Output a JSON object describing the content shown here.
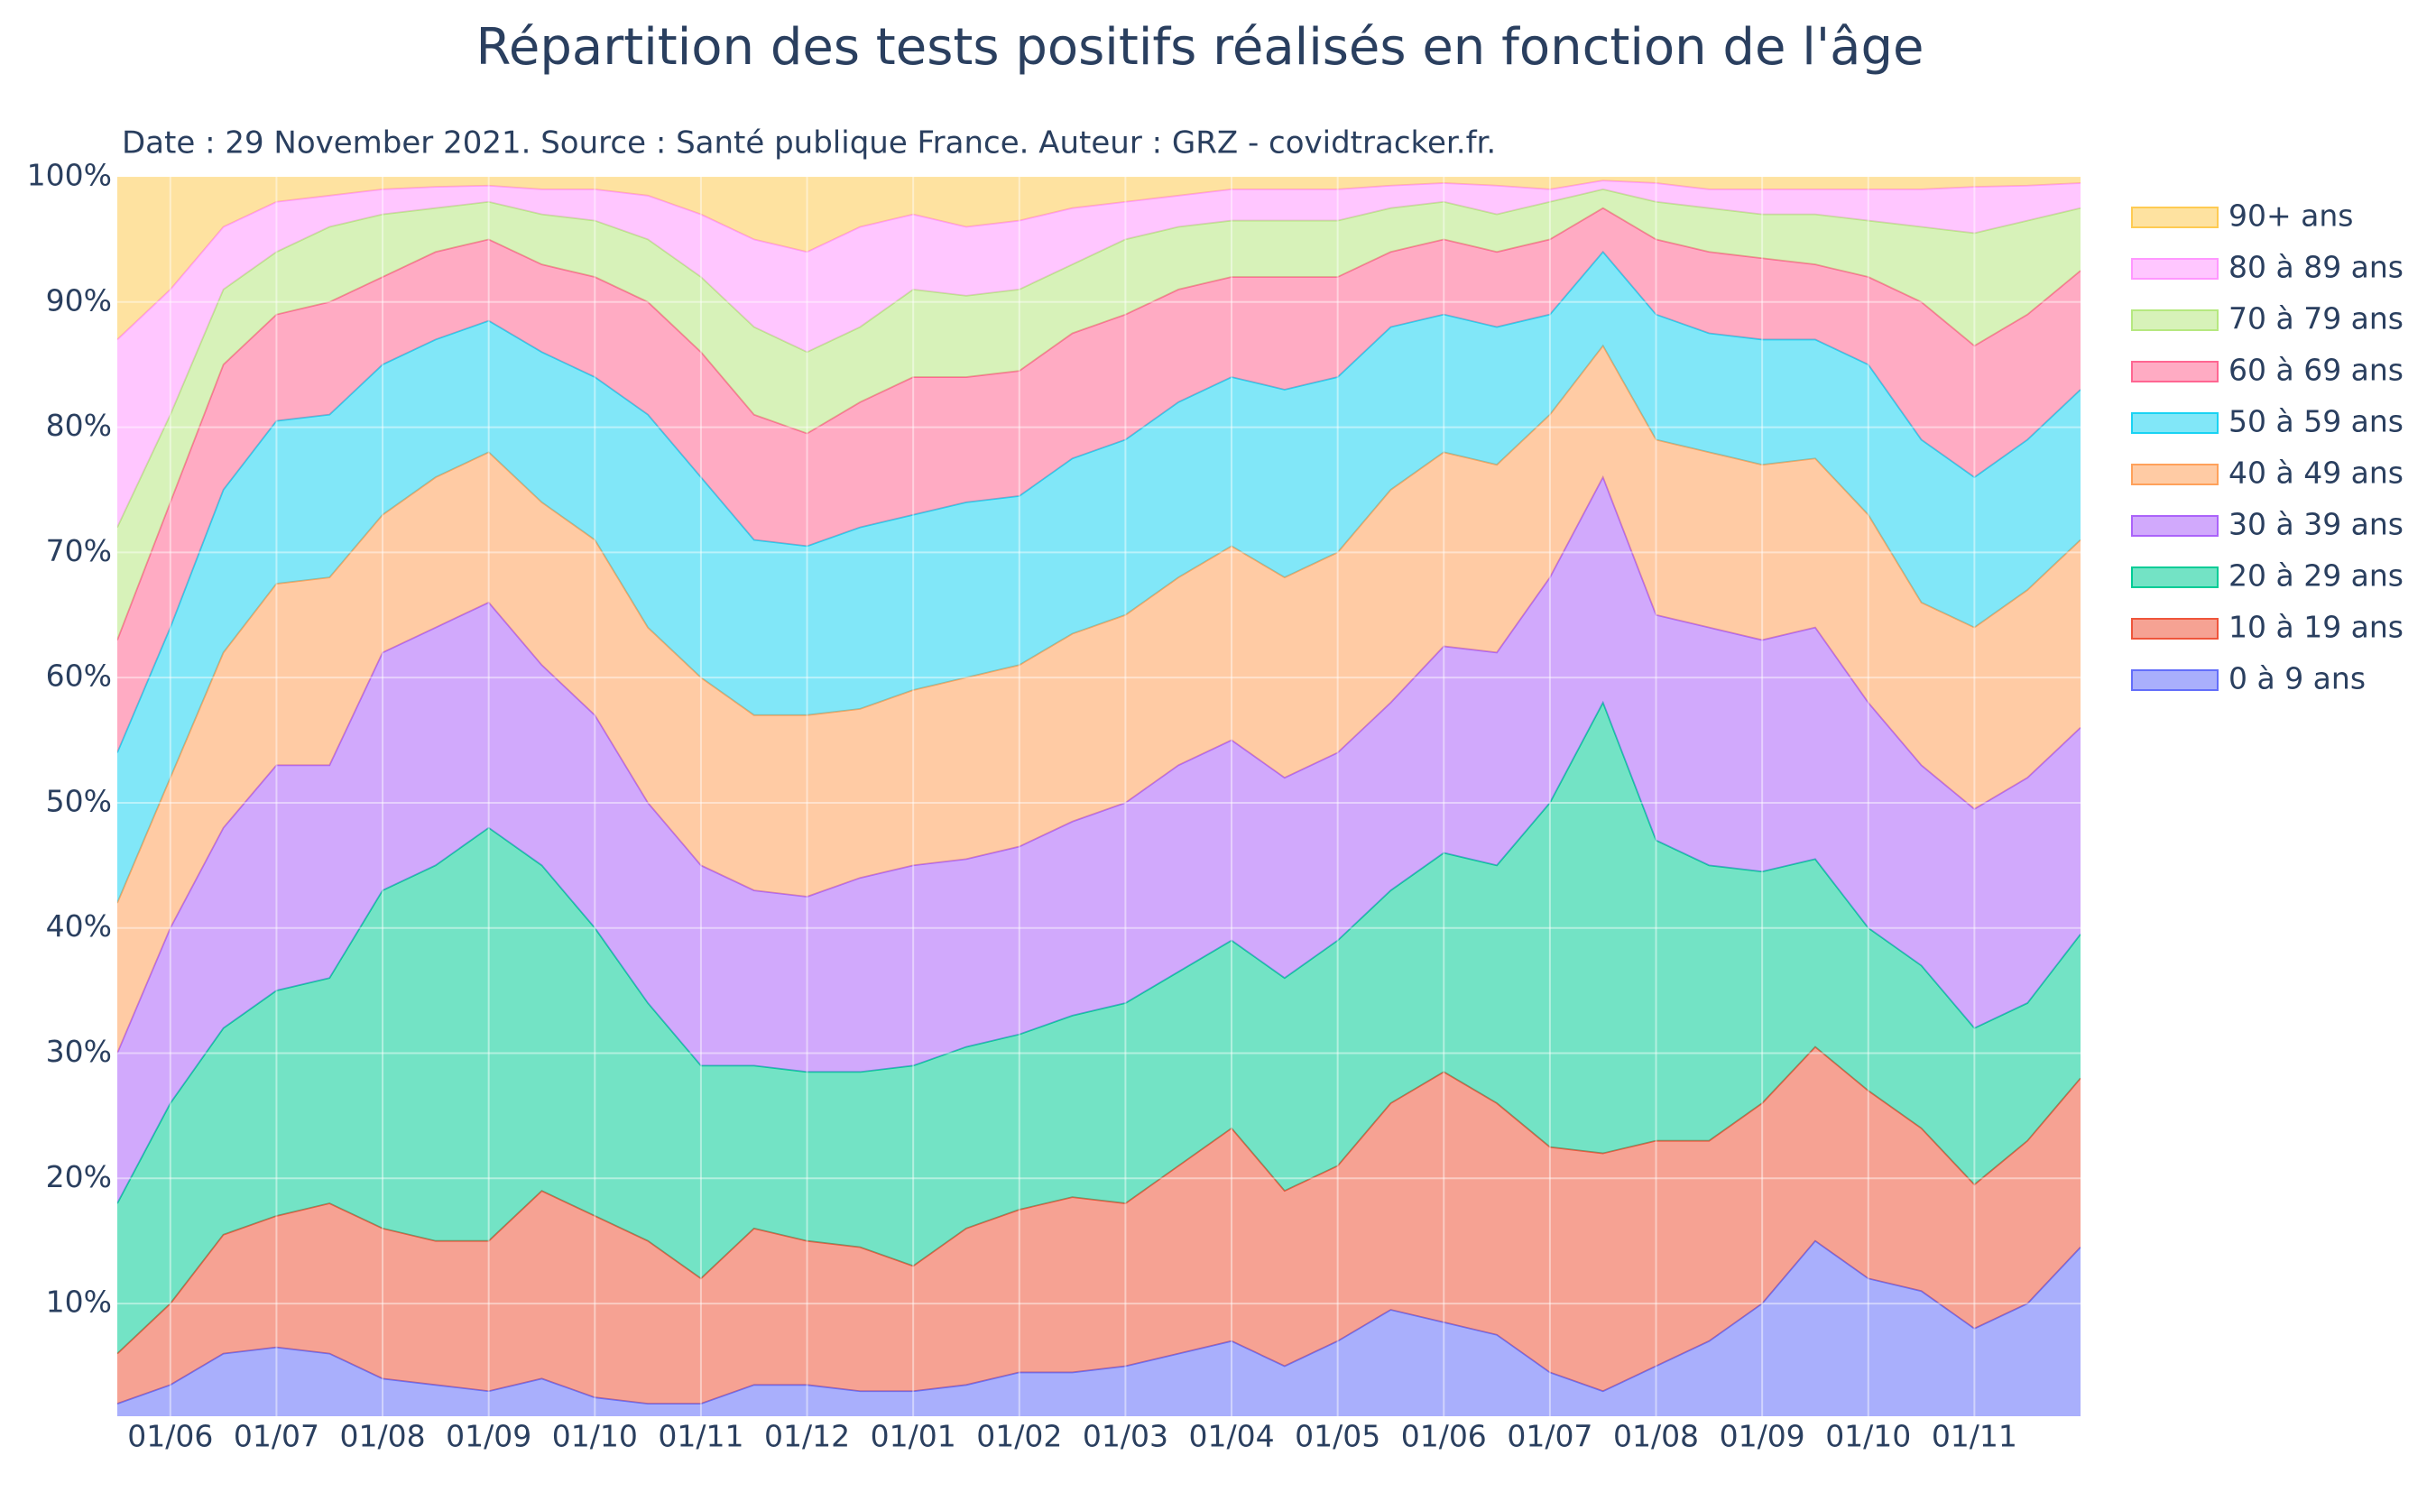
{
  "chart_data": {
    "type": "stacked_area",
    "title": "Répartition des tests positifs réalisés en fonction de l'âge",
    "subtitle": "Date : 29 November 2021. Source : Santé publique France. Auteur : GRZ - covidtracker.fr.",
    "categories": [
      null,
      "01/06",
      null,
      "01/07",
      null,
      "01/08",
      null,
      "01/09",
      null,
      "01/10",
      null,
      "01/11",
      null,
      "01/12",
      null,
      "01/01",
      null,
      "01/02",
      null,
      "01/03",
      null,
      "01/04",
      null,
      "01/05",
      null,
      "01/06",
      null,
      "01/07",
      null,
      "01/08",
      null,
      "01/09",
      null,
      "01/10",
      null,
      "01/11",
      null,
      null
    ],
    "ylim": [
      1,
      100
    ],
    "yticks": [
      {
        "value": 10,
        "label": "10%"
      },
      {
        "value": 20,
        "label": "20%"
      },
      {
        "value": 30,
        "label": "30%"
      },
      {
        "value": 40,
        "label": "40%"
      },
      {
        "value": 50,
        "label": "50%"
      },
      {
        "value": 60,
        "label": "60%"
      },
      {
        "value": 70,
        "label": "70%"
      },
      {
        "value": 80,
        "label": "80%"
      },
      {
        "value": 90,
        "label": "90%"
      },
      {
        "value": 100,
        "label": "100%"
      }
    ],
    "grid": true,
    "legend": "right",
    "series": [
      {
        "name": "0 à 9 ans",
        "color": "#636efa",
        "values": [
          2,
          3.5,
          6,
          6.5,
          6,
          4,
          3.5,
          3,
          4,
          2.5,
          2,
          2,
          3.5,
          3.5,
          3,
          3,
          3.5,
          4.5,
          4.5,
          5,
          6,
          7,
          5,
          7,
          9.5,
          8.5,
          7.5,
          4.5,
          3,
          5,
          7,
          10,
          15,
          12,
          11,
          8,
          10,
          14.5
        ]
      },
      {
        "name": "10 à 19 ans",
        "color": "#ef553b",
        "values": [
          4,
          6.5,
          9.5,
          10.5,
          12,
          12,
          11.5,
          12,
          15,
          14.5,
          13,
          10,
          12.5,
          11.5,
          11.5,
          10,
          12.5,
          13,
          14,
          13,
          15,
          17,
          14,
          14,
          16.5,
          20,
          18.5,
          18,
          19,
          18,
          16,
          16,
          15.5,
          15,
          13,
          11.5,
          13,
          13.5
        ]
      },
      {
        "name": "20 à 29 ans",
        "color": "#00cc96",
        "values": [
          12,
          16,
          16.5,
          18,
          18,
          27,
          30,
          33,
          26,
          23,
          19,
          17,
          13,
          13.5,
          14,
          16,
          14.5,
          14,
          14.5,
          16,
          15.5,
          15,
          17,
          18,
          17,
          17.5,
          19,
          27.5,
          36,
          24,
          22,
          18.5,
          15,
          13,
          13,
          12.5,
          11,
          11.5
        ]
      },
      {
        "name": "30 à 39 ans",
        "color": "#ab63fa",
        "values": [
          12,
          14,
          16,
          18,
          17,
          19,
          19,
          18,
          16,
          17,
          16,
          16,
          14,
          14,
          15.5,
          16,
          15,
          15,
          15.5,
          16,
          16.5,
          16,
          16,
          15,
          15,
          16.5,
          17,
          18,
          18,
          18,
          19,
          18.5,
          18.5,
          18,
          16,
          17.5,
          18,
          16.5
        ]
      },
      {
        "name": "40 à 49 ans",
        "color": "#ffa15a",
        "values": [
          12,
          12,
          14,
          14.5,
          15,
          11,
          12,
          12,
          13,
          14,
          14,
          15,
          14,
          14.5,
          13.5,
          14,
          14.5,
          14.5,
          15,
          15,
          15,
          15.5,
          16,
          16,
          17,
          15.5,
          15,
          13,
          10.5,
          14,
          14,
          14,
          13.5,
          15,
          13,
          14.5,
          15,
          15
        ]
      },
      {
        "name": "50 à 59 ans",
        "color": "#19d3f3",
        "values": [
          12,
          12,
          13,
          13,
          13,
          12,
          11,
          10.5,
          12,
          13,
          17,
          16,
          14,
          13.5,
          14.5,
          14,
          14,
          13.5,
          14,
          14,
          14,
          13.5,
          15,
          14,
          13,
          11,
          11,
          8,
          7.5,
          10,
          9.5,
          10,
          9.5,
          12,
          13,
          12,
          12,
          12
        ]
      },
      {
        "name": "60 à 69 ans",
        "color": "#ff6692",
        "values": [
          9,
          10,
          10,
          8.5,
          9,
          7,
          7,
          6.5,
          7,
          8,
          9,
          10,
          10,
          9,
          10,
          11,
          10,
          10,
          10,
          10,
          9,
          8,
          9,
          8,
          6,
          6,
          6,
          6,
          3.5,
          6,
          6.5,
          6.5,
          6,
          7,
          11,
          10.5,
          10,
          9.5
        ]
      },
      {
        "name": "70 à 79 ans",
        "color": "#b6e880",
        "values": [
          9,
          7,
          6,
          5,
          6,
          5,
          3.5,
          3,
          4,
          4.5,
          5,
          6,
          7,
          6.5,
          6,
          7,
          6.5,
          6.5,
          5.5,
          6,
          5,
          4.5,
          4.5,
          4.5,
          3.5,
          3,
          3,
          3,
          1.5,
          3,
          3.5,
          3.5,
          4,
          4.5,
          6,
          9,
          7.5,
          5
        ]
      },
      {
        "name": "80 à 89 ans",
        "color": "#ff97ff",
        "values": [
          15,
          10,
          5,
          4,
          2.5,
          2,
          1.7,
          1.3,
          2,
          2.5,
          3.5,
          5,
          7,
          8,
          8,
          6,
          5.5,
          5.5,
          4.5,
          3,
          2.5,
          2.5,
          2.5,
          2.5,
          1.8,
          1.5,
          2.3,
          1,
          0.7,
          1.5,
          1.5,
          2,
          2,
          2.5,
          3,
          3.7,
          2.8,
          2
        ]
      },
      {
        "name": "90+ ans",
        "color": "#fecb52",
        "values": [
          13,
          9,
          4,
          2,
          1.5,
          1,
          0.8,
          0.7,
          1,
          1,
          1.5,
          3,
          5,
          6,
          4,
          3,
          4,
          3.5,
          2.5,
          2,
          1.5,
          1,
          1,
          1,
          0.7,
          0.5,
          0.7,
          1,
          0.3,
          0.5,
          1,
          1,
          1,
          1,
          1,
          0.8,
          0.7,
          0.5
        ]
      }
    ]
  }
}
